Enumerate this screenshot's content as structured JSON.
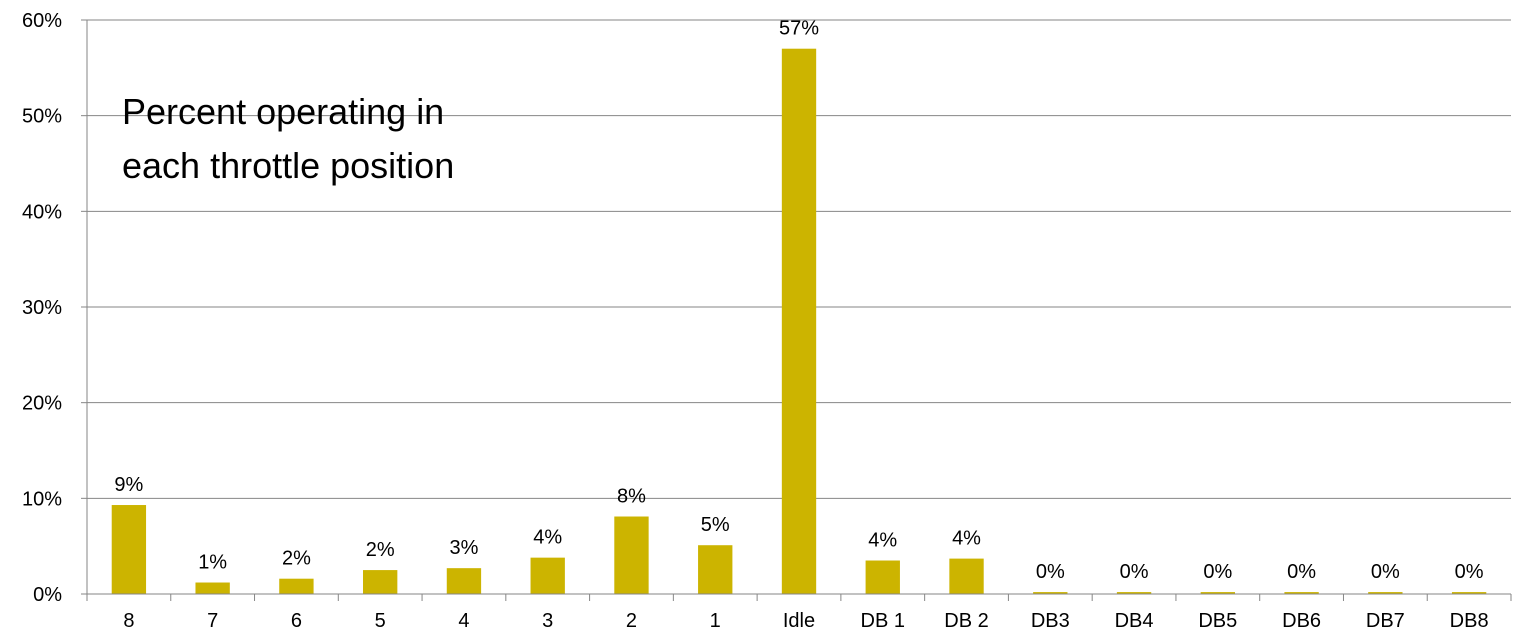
{
  "chart_data": {
    "type": "bar",
    "title": "",
    "annotation_lines": [
      "Percent operating in",
      "each throttle position"
    ],
    "xlabel": "",
    "ylabel": "",
    "categories": [
      "8",
      "7",
      "6",
      "5",
      "4",
      "3",
      "2",
      "1",
      "Idle",
      "DB 1",
      "DB 2",
      "DB3",
      "DB4",
      "DB5",
      "DB6",
      "DB7",
      "DB8"
    ],
    "values": [
      9.3,
      1.2,
      1.6,
      2.5,
      2.7,
      3.8,
      8.1,
      5.1,
      57.0,
      3.5,
      3.7,
      0.2,
      0.2,
      0.2,
      0.2,
      0.2,
      0.2
    ],
    "data_labels": [
      "9%",
      "1%",
      "2%",
      "2%",
      "3%",
      "4%",
      "8%",
      "5%",
      "57%",
      "4%",
      "4%",
      "0%",
      "0%",
      "0%",
      "0%",
      "0%",
      "0%"
    ],
    "ylim": [
      0,
      60
    ],
    "yticks": [
      0,
      10,
      20,
      30,
      40,
      50,
      60
    ],
    "ytick_labels": [
      "0%",
      "10%",
      "20%",
      "30%",
      "40%",
      "50%",
      "60%"
    ],
    "grid": true,
    "legend": "none",
    "bar_color": "#CCB400",
    "grid_color": "#868686"
  }
}
